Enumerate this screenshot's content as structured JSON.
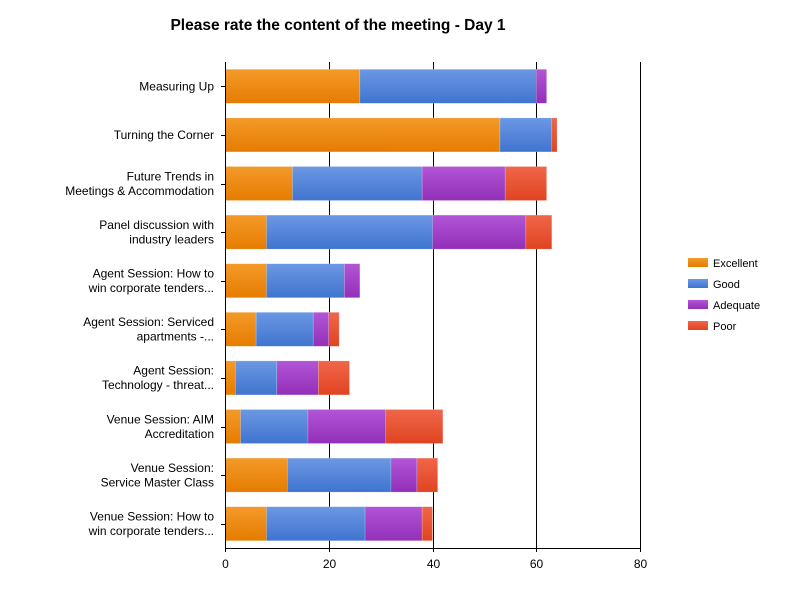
{
  "chart_data": {
    "type": "bar",
    "orientation": "horizontal",
    "stacked": true,
    "title": "Please rate the content of the meeting - Day 1",
    "categories": [
      [
        "Measuring Up"
      ],
      [
        "Turning the Corner"
      ],
      [
        "Future Trends in",
        "Meetings & Accommodation"
      ],
      [
        "Panel discussion with",
        "industry leaders"
      ],
      [
        "Agent Session: How to",
        "win corporate tenders..."
      ],
      [
        "Agent Session: Serviced",
        "apartments -..."
      ],
      [
        "Agent Session:",
        "Technology - threat..."
      ],
      [
        "Venue Session: AIM",
        "Accreditation"
      ],
      [
        "Venue Session:",
        "Service Master Class"
      ],
      [
        "Venue Session: How to",
        "win corporate tenders..."
      ]
    ],
    "series": [
      {
        "name": "Excellent",
        "color": "#f28a0c",
        "values": [
          26,
          53,
          13,
          8,
          8,
          6,
          2,
          3,
          12,
          8
        ]
      },
      {
        "name": "Good",
        "color": "#4f83d9",
        "values": [
          34,
          10,
          25,
          32,
          15,
          11,
          8,
          13,
          20,
          19
        ]
      },
      {
        "name": "Adequate",
        "color": "#a03ac6",
        "values": [
          2,
          0,
          16,
          18,
          3,
          3,
          8,
          15,
          5,
          11
        ]
      },
      {
        "name": "Poor",
        "color": "#e84f2b",
        "values": [
          0,
          1,
          8,
          5,
          0,
          2,
          6,
          11,
          4,
          2
        ]
      }
    ],
    "xlim": [
      0,
      80
    ],
    "xticks": [
      0,
      20,
      40,
      60,
      80
    ],
    "xlabel": "",
    "ylabel": "",
    "grid": true,
    "legend_position": "right"
  }
}
